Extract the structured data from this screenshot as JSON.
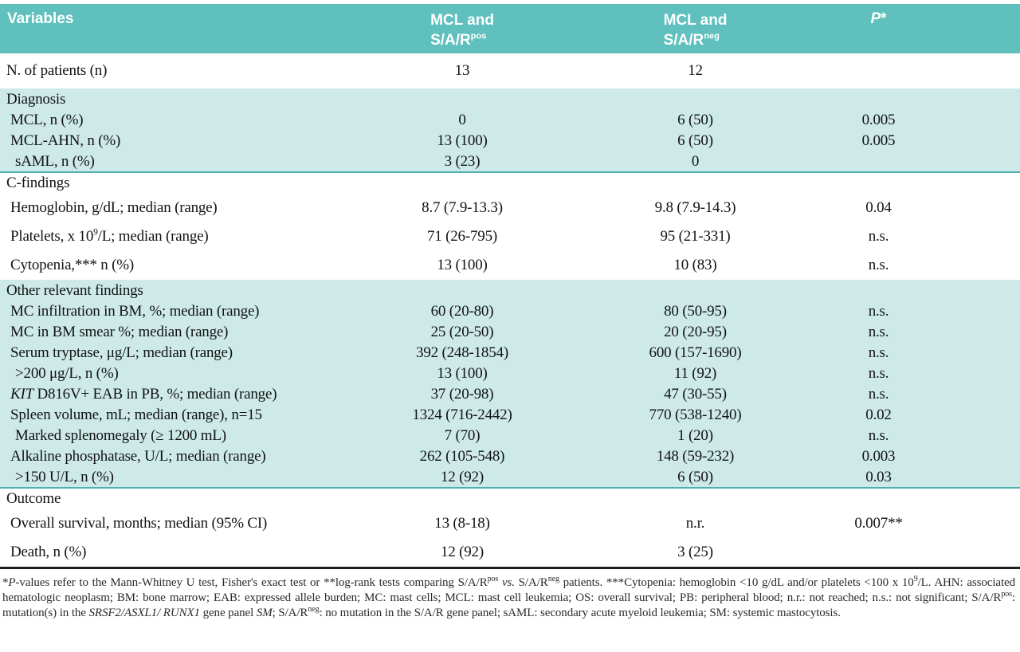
{
  "colors": {
    "header_bg": "#5fc0bd",
    "band_bg": "#cdeae9",
    "separator": "#4fb1ae",
    "rule": "#1d1d1d"
  },
  "header": {
    "variables": "Variables",
    "col_pos": {
      "line1": "MCL and",
      "base": "S/A/R",
      "sup": "pos"
    },
    "col_neg": {
      "line1": "MCL and",
      "base": "S/A/R",
      "sup": "neg"
    },
    "p": {
      "base": "P",
      "star": "*"
    }
  },
  "table": {
    "rows": [
      {
        "size": "xl",
        "indent": 0,
        "label": [
          {
            "t": "N. of patients (n)"
          }
        ],
        "v1": "13",
        "v2": "12",
        "p": ""
      },
      {
        "sec": true,
        "band": true,
        "label": [
          {
            "t": "Diagnosis"
          }
        ]
      },
      {
        "band": true,
        "indent": 1,
        "label": [
          {
            "t": "MCL, n (%)"
          }
        ],
        "v1": "0",
        "v2": "6 (50)",
        "p": "0.005"
      },
      {
        "band": true,
        "indent": 1,
        "label": [
          {
            "t": "MCL-AHN, n (%)"
          }
        ],
        "v1": "13 (100)",
        "v2": "6 (50)",
        "p": "0.005"
      },
      {
        "band": true,
        "bandEnd": true,
        "indent": 2,
        "label": [
          {
            "t": "sAML, n (%)"
          }
        ],
        "v1": "3 (23)",
        "v2": "0",
        "p": ""
      },
      {
        "sec": true,
        "label": [
          {
            "t": "C-findings"
          }
        ]
      },
      {
        "size": "tall",
        "indent": 1,
        "label": [
          {
            "t": "Hemoglobin, g/dL; median (range)"
          }
        ],
        "v1": "8.7 (7.9-13.3)",
        "v2": "9.8 (7.9-14.3)",
        "p": "0.04"
      },
      {
        "size": "tall",
        "indent": 1,
        "label": [
          {
            "t": "Platelets, x 10"
          },
          {
            "t": "9",
            "s": true
          },
          {
            "t": "/L; median (range)"
          }
        ],
        "v1": "71 (26-795)",
        "v2": "95 (21-331)",
        "p": "n.s."
      },
      {
        "size": "tall",
        "indent": 1,
        "label": [
          {
            "t": "Cytopenia,*** n (%)"
          }
        ],
        "v1": "13 (100)",
        "v2": "10 (83)",
        "p": "n.s."
      },
      {
        "sec": true,
        "band": true,
        "label": [
          {
            "t": "Other relevant findings"
          }
        ]
      },
      {
        "band": true,
        "indent": 1,
        "label": [
          {
            "t": "MC infiltration in BM, %; median (range)"
          }
        ],
        "v1": "60 (20-80)",
        "v2": "80 (50-95)",
        "p": "n.s."
      },
      {
        "band": true,
        "indent": 1,
        "label": [
          {
            "t": "MC in BM smear %; median (range)"
          }
        ],
        "v1": "25 (20-50)",
        "v2": "20 (20-95)",
        "p": "n.s."
      },
      {
        "band": true,
        "indent": 1,
        "label": [
          {
            "t": "Serum tryptase, μg/L; median (range)"
          }
        ],
        "v1": "392 (248-1854)",
        "v2": "600 (157-1690)",
        "p": "n.s."
      },
      {
        "band": true,
        "indent": 2,
        "label": [
          {
            "t": ">200 μg/L, n (%)"
          }
        ],
        "v1": "13 (100)",
        "v2": "11 (92)",
        "p": "n.s."
      },
      {
        "band": true,
        "indent": 1,
        "label": [
          {
            "t": "KIT",
            "i": true
          },
          {
            "t": " D816V+ EAB in PB, %; median (range)"
          }
        ],
        "v1": "37 (20-98)",
        "v2": "47 (30-55)",
        "p": "n.s."
      },
      {
        "band": true,
        "indent": 1,
        "label": [
          {
            "t": "Spleen volume, mL; median (range), n=15"
          }
        ],
        "v1": "1324 (716-2442)",
        "v2": "770 (538-1240)",
        "p": "0.02"
      },
      {
        "band": true,
        "indent": 2,
        "label": [
          {
            "t": "Marked splenomegaly (≥ 1200 mL)"
          }
        ],
        "v1": "7 (70)",
        "v2": "1 (20)",
        "p": "n.s."
      },
      {
        "band": true,
        "indent": 1,
        "label": [
          {
            "t": "Alkaline phosphatase, U/L; median (range)"
          }
        ],
        "v1": "262 (105-548)",
        "v2": "148 (59-232)",
        "p": "0.003"
      },
      {
        "band": true,
        "bandEnd": true,
        "indent": 2,
        "label": [
          {
            "t": ">150 U/L, n (%)"
          }
        ],
        "v1": "12 (92)",
        "v2": "6 (50)",
        "p": "0.03"
      },
      {
        "sec": true,
        "label": [
          {
            "t": "Outcome"
          }
        ]
      },
      {
        "size": "out",
        "indent": 1,
        "label": [
          {
            "t": "Overall survival, months; median (95% CI)"
          }
        ],
        "v1": "13 (8-18)",
        "v2": "n.r.",
        "p": "0.007**"
      },
      {
        "size": "out",
        "indent": 1,
        "label": [
          {
            "t": "Death, n (%)"
          }
        ],
        "v1": "12 (92)",
        "v2": "3 (25)",
        "p": ""
      }
    ]
  },
  "footnote": {
    "segments": [
      {
        "t": "*"
      },
      {
        "t": "P",
        "i": true
      },
      {
        "t": "-values refer to the Mann-Whitney U test, Fisher's exact test or **log-rank tests comparing S/A/R"
      },
      {
        "t": "pos",
        "s": true
      },
      {
        "t": " "
      },
      {
        "t": "vs.",
        "i": true
      },
      {
        "t": " S/A/R"
      },
      {
        "t": "neg",
        "s": true
      },
      {
        "t": " patients. ***Cytopenia: hemoglobin <10 g/dL and/or platelets <100 x 10"
      },
      {
        "t": "9",
        "s": true
      },
      {
        "t": "/L. AHN: associated hematologic neoplasm; BM: bone marrow; EAB: expressed allele burden; MC: mast cells; MCL: mast cell leukemia; OS: overall survival; PB: peripheral blood; n.r.: not reached; n.s.: not significant; S/A/R"
      },
      {
        "t": "pos",
        "s": true
      },
      {
        "t": ": mutation(s) in the "
      },
      {
        "t": "SRSF2/ASXL1/ RUNX1",
        "i": true
      },
      {
        "t": " gene panel "
      },
      {
        "t": "SM",
        "i": true
      },
      {
        "t": "; S/A/R"
      },
      {
        "t": "neg",
        "s": true
      },
      {
        "t": ": no mutation in the S/A/R gene panel; sAML: secondary acute myeloid leukemia; SM: systemic mastocytosis."
      }
    ]
  }
}
